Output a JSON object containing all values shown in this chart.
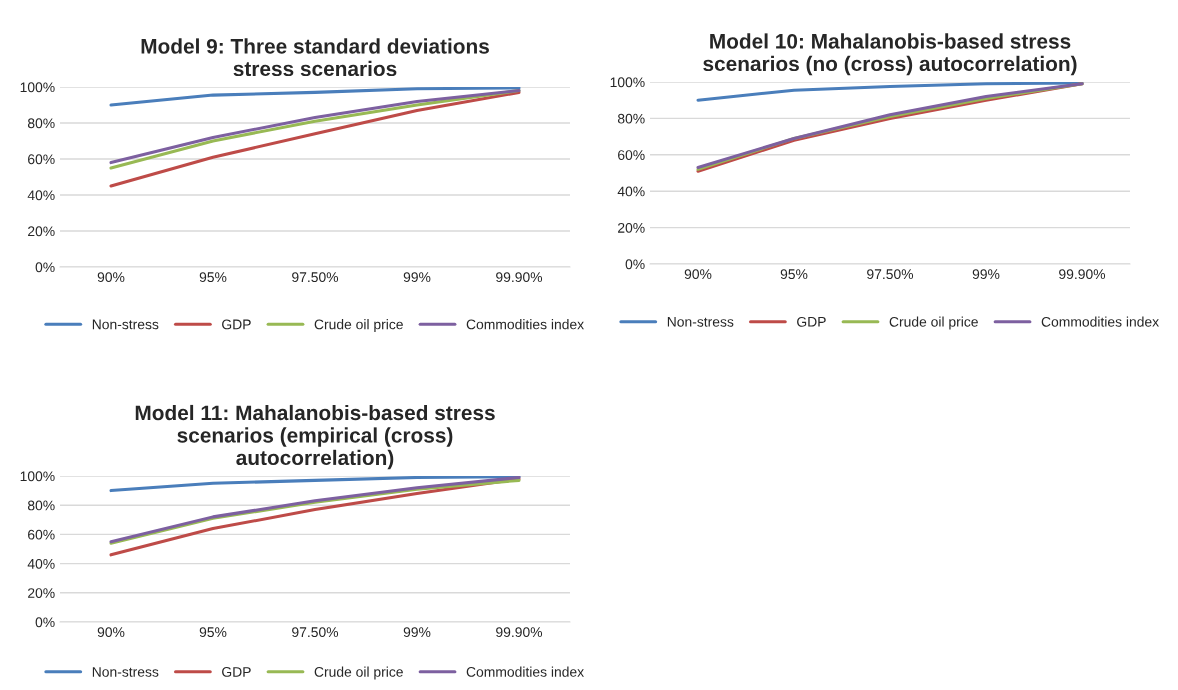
{
  "chart_data": [
    {
      "type": "line",
      "title": "Model 9: Three standard deviations\nstress scenarios",
      "categories": [
        "90%",
        "95%",
        "97.50%",
        "99%",
        "99.90%"
      ],
      "ylim": [
        0,
        1
      ],
      "yticks": [
        {
          "value": 0,
          "label": "0%"
        },
        {
          "value": 0.2,
          "label": "20%"
        },
        {
          "value": 0.4,
          "label": "40%"
        },
        {
          "value": 0.6,
          "label": "60%"
        },
        {
          "value": 0.8,
          "label": "80%"
        },
        {
          "value": 1,
          "label": "100%"
        }
      ],
      "grid": "y",
      "legend": "bottom",
      "marker": "none",
      "line_style": "solid",
      "series": [
        {
          "name": "Non-stress",
          "color": "#4a7ebb",
          "values": [
            0.9,
            0.955,
            0.97,
            0.99,
            0.995
          ]
        },
        {
          "name": "GDP",
          "color": "#be4b48",
          "values": [
            0.45,
            0.61,
            0.74,
            0.87,
            0.97
          ]
        },
        {
          "name": "Crude oil price",
          "color": "#98b954",
          "values": [
            0.55,
            0.7,
            0.81,
            0.9,
            0.98
          ]
        },
        {
          "name": "Commodities index",
          "color": "#7d60a0",
          "values": [
            0.58,
            0.72,
            0.83,
            0.92,
            0.98
          ]
        }
      ]
    },
    {
      "type": "line",
      "title": "Model 10: Mahalanobis-based stress\nscenarios (no (cross) autocorrelation)",
      "categories": [
        "90%",
        "95%",
        "97.50%",
        "99%",
        "99.90%"
      ],
      "ylim": [
        0,
        1
      ],
      "yticks": [
        {
          "value": 0,
          "label": "0%"
        },
        {
          "value": 0.2,
          "label": "20%"
        },
        {
          "value": 0.4,
          "label": "40%"
        },
        {
          "value": 0.6,
          "label": "60%"
        },
        {
          "value": 0.8,
          "label": "80%"
        },
        {
          "value": 1,
          "label": "100%"
        }
      ],
      "grid": "y",
      "legend": "bottom",
      "marker": "none",
      "line_style": "solid",
      "series": [
        {
          "name": "Non-stress",
          "color": "#4a7ebb",
          "values": [
            0.9,
            0.955,
            0.975,
            0.99,
            0.995
          ]
        },
        {
          "name": "GDP",
          "color": "#be4b48",
          "values": [
            0.51,
            0.68,
            0.8,
            0.9,
            0.99
          ]
        },
        {
          "name": "Crude oil price",
          "color": "#98b954",
          "values": [
            0.52,
            0.69,
            0.81,
            0.91,
            0.99
          ]
        },
        {
          "name": "Commodities index",
          "color": "#7d60a0",
          "values": [
            0.53,
            0.69,
            0.82,
            0.92,
            0.99
          ]
        }
      ]
    },
    {
      "type": "line",
      "title": "Model 11: Mahalanobis-based stress\nscenarios (empirical (cross)\nautocorrelation)",
      "categories": [
        "90%",
        "95%",
        "97.50%",
        "99%",
        "99.90%"
      ],
      "ylim": [
        0,
        1
      ],
      "yticks": [
        {
          "value": 0,
          "label": "0%"
        },
        {
          "value": 0.2,
          "label": "20%"
        },
        {
          "value": 0.4,
          "label": "40%"
        },
        {
          "value": 0.6,
          "label": "60%"
        },
        {
          "value": 0.8,
          "label": "80%"
        },
        {
          "value": 1,
          "label": "100%"
        }
      ],
      "grid": "y",
      "legend": "bottom",
      "marker": "none",
      "line_style": "solid",
      "series": [
        {
          "name": "Non-stress",
          "color": "#4a7ebb",
          "values": [
            0.9,
            0.95,
            0.97,
            0.99,
            0.995
          ]
        },
        {
          "name": "GDP",
          "color": "#be4b48",
          "values": [
            0.46,
            0.64,
            0.77,
            0.88,
            0.98
          ]
        },
        {
          "name": "Crude oil price",
          "color": "#98b954",
          "values": [
            0.54,
            0.71,
            0.82,
            0.91,
            0.97
          ]
        },
        {
          "name": "Commodities index",
          "color": "#7d60a0",
          "values": [
            0.55,
            0.72,
            0.83,
            0.92,
            0.99
          ]
        }
      ]
    }
  ]
}
